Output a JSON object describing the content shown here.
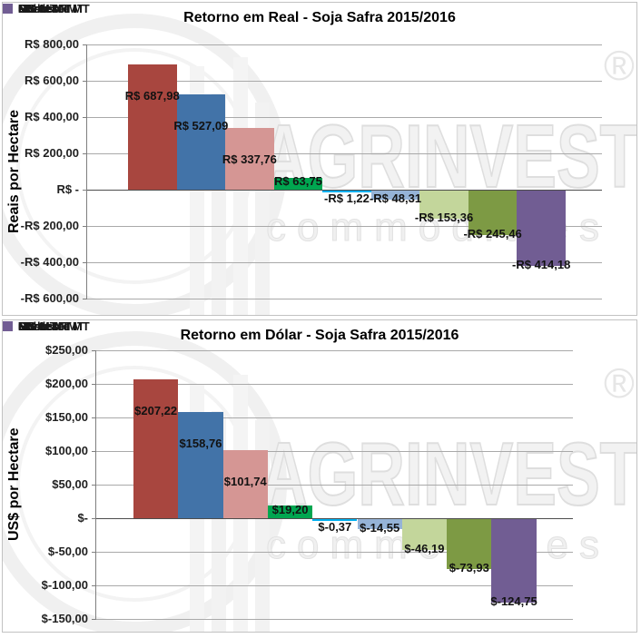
{
  "watermark": {
    "brand": "AGRINVEST",
    "subtitle": "commodities",
    "registered": "®"
  },
  "chart_data": [
    {
      "type": "bar",
      "title": "Retorno em Real - Soja Safra 2015/2016",
      "ylabel": "Reais por Hectare",
      "xlabel": "",
      "ylim": [
        -600,
        800
      ],
      "ytick_step": 200,
      "grid": true,
      "legend_position": "right",
      "categories": [
        "PR",
        "RS",
        "Sul MT",
        "GO",
        "MS",
        "Oeste MT",
        "Sudeste MT",
        "Nordeste MT",
        "Norte MT"
      ],
      "values": [
        687.98,
        527.09,
        337.76,
        63.75,
        -1.22,
        -48.31,
        -153.36,
        -245.46,
        -414.18
      ],
      "value_labels": [
        "R$ 687,98",
        "R$ 527,09",
        "R$ 337,76",
        "R$ 63,75",
        "-R$ 1,22",
        "-R$ 48,31",
        "-R$ 153,36",
        "-R$ 245,46",
        "-R$ 414,18"
      ],
      "ytick_labels": [
        "R$ 800,00",
        "R$ 600,00",
        "R$ 400,00",
        "R$ 200,00",
        "R$ -",
        "-R$ 200,00",
        "-R$ 400,00",
        "-R$ 600,00"
      ],
      "ytick_values": [
        800,
        600,
        400,
        200,
        0,
        -200,
        -400,
        -600
      ],
      "colors": [
        "#A8463F",
        "#4273A8",
        "#D59694",
        "#00A650",
        "#00B0F0",
        "#95B3D7",
        "#C3D69B",
        "#7D9A44",
        "#715D93"
      ]
    },
    {
      "type": "bar",
      "title": "Retorno em Dólar - Soja Safra 2015/2016",
      "ylabel": "US$ por Hectare",
      "xlabel": "",
      "ylim": [
        -150,
        250
      ],
      "ytick_step": 50,
      "grid": true,
      "legend_position": "right",
      "categories": [
        "PR",
        "RS",
        "Sul MT",
        "GO",
        "MS",
        "Oeste MT",
        "Sudeste MT",
        "Nordeste MT",
        "Norte MT"
      ],
      "values": [
        207.22,
        158.76,
        101.74,
        19.2,
        -0.37,
        -14.55,
        -46.19,
        -73.93,
        -124.75
      ],
      "value_labels": [
        "$207,22",
        "$158,76",
        "$101,74",
        "$19,20",
        "$-0,37",
        "$-14,55",
        "$-46,19",
        "$-73,93",
        "$-124,75"
      ],
      "ytick_labels": [
        "$250,00",
        "$200,00",
        "$150,00",
        "$100,00",
        "$50,00",
        "$-",
        "$-50,00",
        "$-100,00",
        "$-150,00"
      ],
      "ytick_values": [
        250,
        200,
        150,
        100,
        50,
        0,
        -50,
        -100,
        -150
      ],
      "colors": [
        "#A8463F",
        "#4273A8",
        "#D59694",
        "#00A650",
        "#00B0F0",
        "#95B3D7",
        "#C3D69B",
        "#7D9A44",
        "#715D93"
      ]
    }
  ]
}
